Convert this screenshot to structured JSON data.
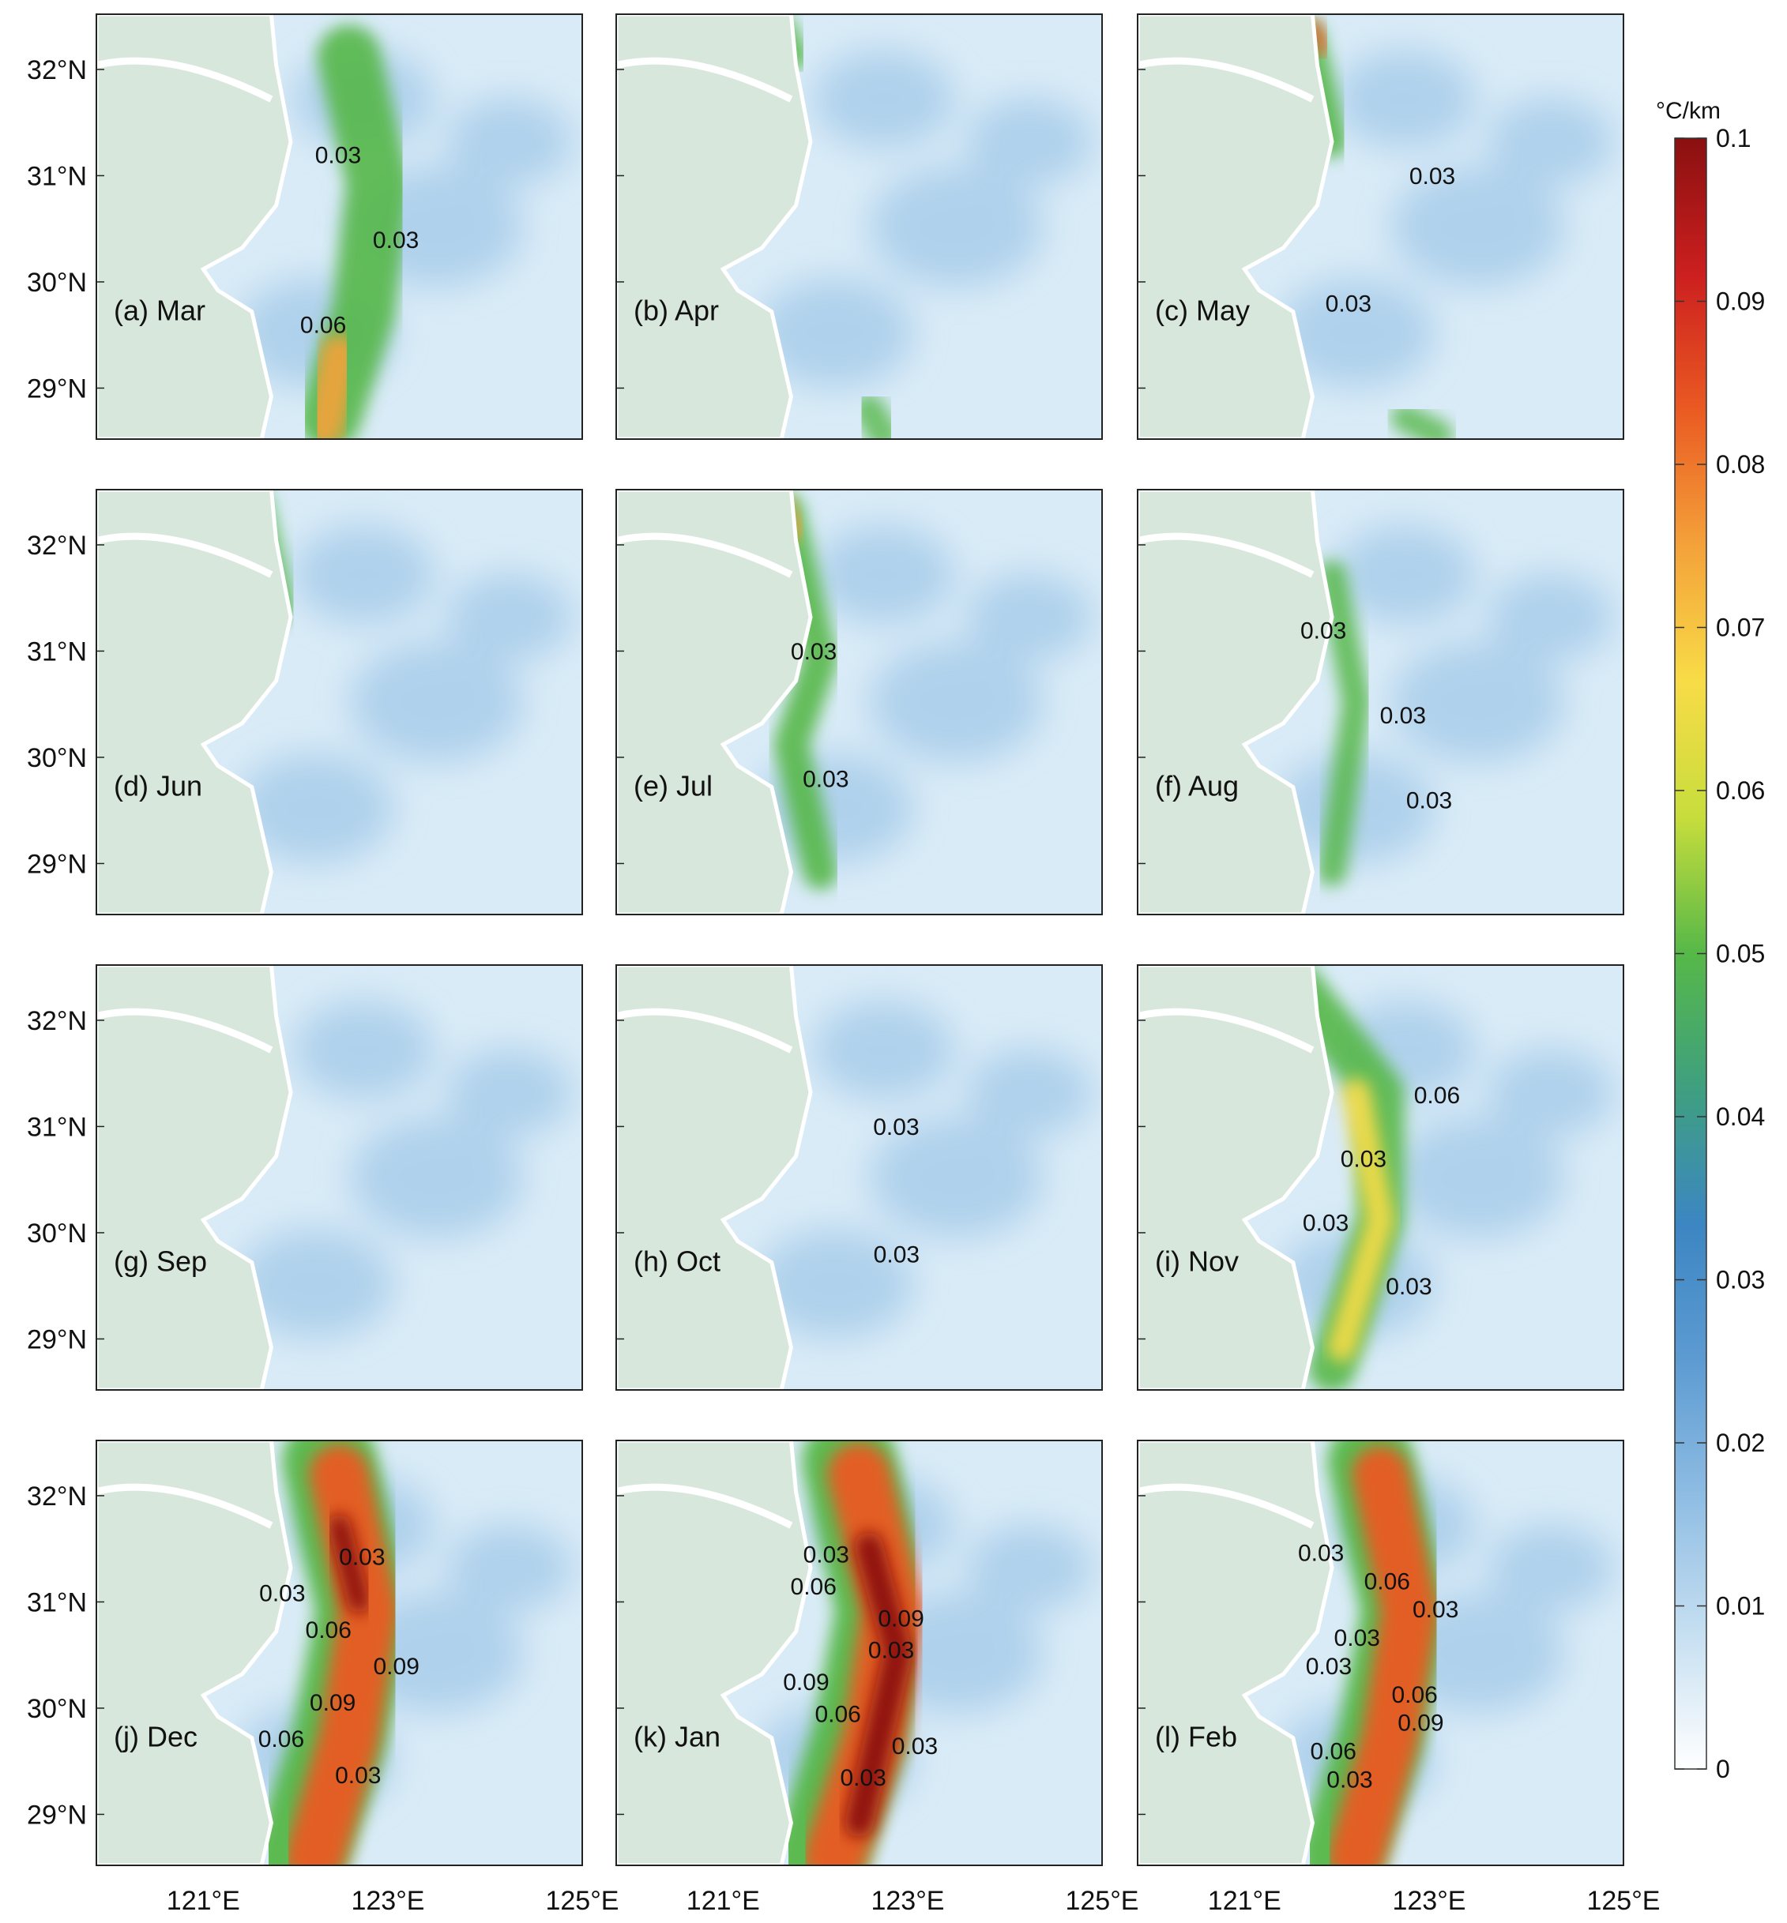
{
  "lat_ticks": [
    "32°N",
    "31°N",
    "30°N",
    "29°N"
  ],
  "lon_ticks": [
    "121°E",
    "123°E",
    "125°E"
  ],
  "colorbar": {
    "unit": "°C/km",
    "ticks": [
      "0.1",
      "0.09",
      "0.08",
      "0.07",
      "0.06",
      "0.05",
      "0.04",
      "0.03",
      "0.02",
      "0.01",
      "0"
    ],
    "stops": [
      "#ffffff",
      "#c6dff1",
      "#8fbde3",
      "#5d9bd2",
      "#3c86c3",
      "#3f9f80",
      "#56b848",
      "#c7dd3c",
      "#f8dc47",
      "#f4a23a",
      "#ea5a22",
      "#cc1f1f",
      "#8a1010"
    ]
  },
  "colors": {
    "land": "#d7e7dc",
    "coast": "#ffffff",
    "sea_base": "#d9ebf7",
    "contour": "#111111"
  },
  "panels": [
    {
      "label": "(a) Mar",
      "contours": [
        "0.03",
        "0.03",
        "0.06"
      ]
    },
    {
      "label": "(b) Apr",
      "contours": []
    },
    {
      "label": "(c) May",
      "contours": [
        "0.03",
        "0.03"
      ]
    },
    {
      "label": "(d) Jun",
      "contours": []
    },
    {
      "label": "(e) Jul",
      "contours": [
        "0.03",
        "0.03"
      ]
    },
    {
      "label": "(f) Aug",
      "contours": [
        "0.03",
        "0.03",
        "0.03"
      ]
    },
    {
      "label": "(g) Sep",
      "contours": []
    },
    {
      "label": "(h) Oct",
      "contours": [
        "0.03",
        "0.03"
      ]
    },
    {
      "label": "(i) Nov",
      "contours": [
        "0.06",
        "0.03",
        "0.03",
        "0.03"
      ]
    },
    {
      "label": "(j) Dec",
      "contours": [
        "0.03",
        "0.03",
        "0.06",
        "0.09",
        "0.09",
        "0.06",
        "0.03"
      ]
    },
    {
      "label": "(k) Jan",
      "contours": [
        "0.03",
        "0.06",
        "0.09",
        "0.03",
        "0.09",
        "0.06",
        "0.03",
        "0.03"
      ]
    },
    {
      "label": "(l) Feb",
      "contours": [
        "0.03",
        "0.06",
        "0.03",
        "0.03",
        "0.03",
        "0.06",
        "0.09",
        "0.06",
        "0.03"
      ]
    }
  ]
}
